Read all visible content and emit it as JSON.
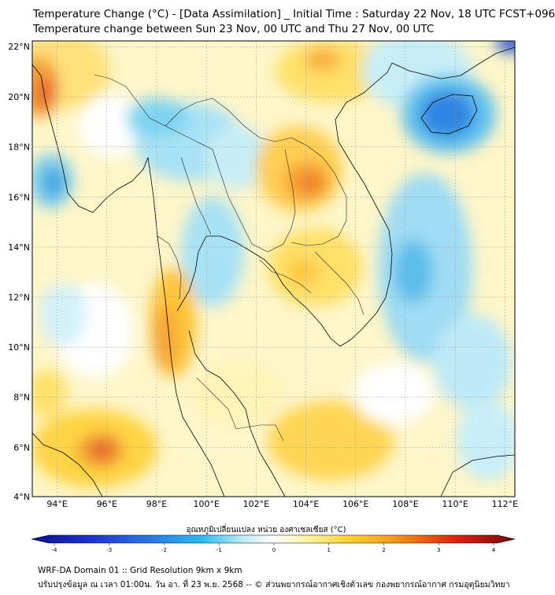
{
  "header": {
    "title_line1": "Temperature Change (°C) - [Data Assimilation] _ Initial Time : Saturday 22 Nov, 18 UTC FCST+096",
    "title_line2": "Temperature change between Sun 23 Nov, 00 UTC and Thu 27 Nov, 00 UTC"
  },
  "map": {
    "lat_labels": [
      "22°N",
      "20°N",
      "18°N",
      "16°N",
      "14°N",
      "12°N",
      "10°N",
      "8°N",
      "6°N",
      "4°N"
    ],
    "lon_labels": [
      "94°E",
      "96°E",
      "98°E",
      "100°E",
      "102°E",
      "104°E",
      "106°E",
      "108°E",
      "110°E",
      "112°E"
    ],
    "lat_range": [
      4,
      22.2
    ],
    "lon_range": [
      93,
      112.4
    ],
    "gridlines": true,
    "colors": {
      "grid": "#9a9a9a",
      "border": "#000000"
    }
  },
  "colorbar": {
    "title": "อุณหภูมิเปลี่ยนแปลง หน่วย องศาเซลเซียส (°C)",
    "ticks": [
      "-4",
      "-3",
      "-2",
      "-1",
      "0",
      "1",
      "2",
      "3",
      "4"
    ],
    "range": [
      -4,
      4
    ]
  },
  "footer": {
    "line1": "WRF-DA Domain 01 :: Grid Resolution 9km x 9km",
    "line2": "ปรับปรุงข้อมูล ณ เวลา 01:00น. วัน อา. ที่ 23 พ.ย. 2568 -- © ส่วนพยากรณ์อากาศเชิงตัวเลข กองพยากรณ์อากาศ กรมอุตุนิยมวิทยา"
  }
}
